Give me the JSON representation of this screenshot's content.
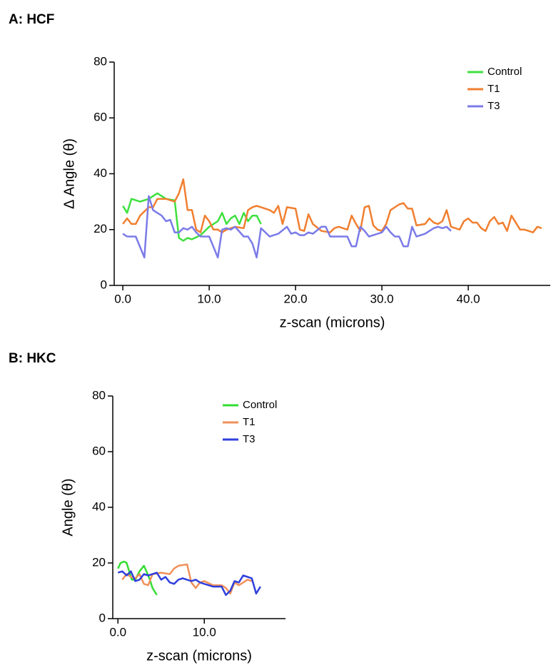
{
  "chart_data": [
    {
      "type": "line",
      "title": "A: HCF",
      "xlabel": "z-scan (microns)",
      "ylabel": "Δ Angle (θ)",
      "xlim": [
        -1,
        49.5
      ],
      "ylim": [
        0,
        80
      ],
      "xticks": [
        {
          "value": 0,
          "label": "0.0"
        },
        {
          "value": 10,
          "label": "10.0"
        },
        {
          "value": 20,
          "label": "20.0"
        },
        {
          "value": 30,
          "label": "30.0"
        },
        {
          "value": 40,
          "label": "40.0"
        }
      ],
      "yticks": [
        0,
        20,
        40,
        60,
        80
      ],
      "legend": "upper right",
      "series": [
        {
          "name": "Control",
          "color": "#3fe03f",
          "x": [
            0,
            0.5,
            1,
            2,
            3,
            4,
            5,
            6,
            6.5,
            7,
            7.5,
            8,
            9,
            10,
            11,
            11.5,
            12,
            12.5,
            13,
            13.5,
            14,
            14.5,
            15,
            15.5,
            16
          ],
          "values": [
            28.5,
            26,
            31,
            30,
            31,
            33,
            31,
            30.5,
            17,
            16,
            17,
            16.5,
            18,
            21,
            23,
            26,
            22,
            24,
            25,
            22,
            26,
            23,
            25,
            25,
            22
          ]
        },
        {
          "name": "T1",
          "color": "#f07f30",
          "x": [
            0,
            0.5,
            1,
            1.5,
            2,
            3,
            3.5,
            4,
            5,
            6,
            6.5,
            7,
            7.5,
            8,
            8.5,
            9,
            9.5,
            10,
            10.5,
            11,
            11.5,
            12,
            13,
            14,
            14.5,
            15,
            15.5,
            16,
            17,
            17.5,
            18,
            18.5,
            19,
            20,
            20.5,
            21,
            21.5,
            22,
            23,
            24,
            24.5,
            25,
            26,
            26.5,
            27,
            27.5,
            28,
            28.5,
            29,
            29.5,
            30,
            30.5,
            31,
            32,
            32.5,
            33,
            33.5,
            34,
            35,
            35.5,
            36,
            36.5,
            37,
            37.5,
            38,
            39,
            39.5,
            40,
            40.5,
            41,
            41.5,
            42,
            42.5,
            43,
            43.5,
            44,
            44.5,
            45,
            46,
            46.5,
            47,
            47.5,
            48,
            48.5
          ],
          "values": [
            22,
            24,
            22,
            22,
            25,
            28,
            28,
            31,
            31,
            30,
            33,
            38,
            27,
            27,
            20,
            19,
            25,
            23,
            20,
            20,
            19,
            20,
            21,
            20.5,
            27,
            28,
            28.5,
            28,
            27,
            26,
            28.5,
            22,
            28,
            27.5,
            20,
            19.5,
            25.5,
            22,
            19.5,
            19,
            20.5,
            21,
            20,
            25,
            22,
            19.5,
            28,
            28.5,
            21.5,
            20,
            19.5,
            22,
            27,
            29,
            29.5,
            27.5,
            27.5,
            21.5,
            22,
            24,
            22.5,
            22,
            23,
            27,
            21,
            20,
            23,
            24,
            22.5,
            22.5,
            20.5,
            19.5,
            23,
            24.5,
            22,
            22.5,
            19.5,
            25,
            20,
            20,
            19.5,
            19,
            21,
            20.5
          ]
        },
        {
          "name": "T3",
          "color": "#7b7be8",
          "x": [
            0,
            0.5,
            1.5,
            2.5,
            3,
            3.5,
            4.5,
            5,
            5.5,
            6,
            6.5,
            7,
            7.5,
            8,
            8.5,
            9,
            10,
            11,
            11.5,
            12,
            12.5,
            13,
            14,
            14.5,
            15,
            15.5,
            16,
            17,
            18,
            19,
            19.5,
            20,
            20.5,
            21,
            21.5,
            22,
            23,
            23.5,
            24,
            25,
            26,
            26.5,
            27,
            27.5,
            28,
            28.5,
            29,
            30,
            30.5,
            31,
            31.5,
            32,
            32.5,
            33,
            33.5,
            34,
            35,
            36,
            36.5,
            37,
            37.5,
            38
          ],
          "values": [
            18.5,
            17.5,
            17.5,
            10,
            32,
            27,
            25,
            23,
            23.5,
            19,
            19,
            20.5,
            20,
            21,
            19,
            17.5,
            17.5,
            10,
            20,
            20.5,
            20,
            21,
            17.5,
            17.5,
            15,
            10,
            20.5,
            17.5,
            18.5,
            21,
            18.5,
            19,
            18,
            18,
            19,
            18.5,
            21,
            21,
            17.5,
            17.5,
            17.5,
            14,
            14,
            21,
            19.5,
            17.5,
            18,
            19,
            21,
            19,
            17.5,
            17.5,
            14,
            14,
            21,
            17.5,
            18.5,
            20.5,
            21,
            20.5,
            21,
            19.5
          ]
        }
      ]
    },
    {
      "type": "line",
      "title": "B: HKC",
      "xlabel": "z-scan (microns)",
      "ylabel": "Angle (θ)",
      "xlim": [
        -0.6,
        19.4
      ],
      "ylim": [
        0,
        80
      ],
      "xticks": [
        {
          "value": 0,
          "label": "0.0"
        },
        {
          "value": 10,
          "label": "10.0"
        }
      ],
      "yticks": [
        0,
        20,
        40,
        60,
        80
      ],
      "legend": "upper center",
      "series": [
        {
          "name": "Control",
          "color": "#33dd33",
          "x": [
            0,
            0.3,
            0.7,
            1,
            1.3,
            1.6,
            2,
            2.5,
            3,
            3.3,
            3.7,
            4,
            4.5
          ],
          "values": [
            18,
            20,
            20.5,
            20,
            17,
            14,
            14,
            17,
            19,
            17,
            14,
            11,
            8.5
          ]
        },
        {
          "name": "T1",
          "color": "#f0905a",
          "x": [
            0.5,
            1,
            1.5,
            2,
            2.5,
            3,
            3.5,
            4,
            5,
            6,
            6.5,
            7,
            8,
            8.5,
            9,
            9.5,
            10,
            11,
            12,
            12.5,
            13,
            13.5,
            14,
            15,
            15.5
          ],
          "values": [
            14,
            16,
            15,
            14.5,
            16,
            12.5,
            12,
            16,
            16.5,
            16,
            18,
            19,
            19.5,
            13,
            11,
            13,
            13.5,
            12,
            12,
            11,
            9,
            13,
            12,
            14,
            13.5
          ]
        },
        {
          "name": "T3",
          "color": "#2f3fdc",
          "x": [
            0,
            0.5,
            1,
            1.5,
            2,
            2.5,
            3,
            3.5,
            4,
            4.5,
            5,
            5.5,
            6,
            6.5,
            7,
            7.5,
            8,
            8.5,
            9,
            9.5,
            10,
            11,
            12,
            12.5,
            13,
            13.5,
            14,
            14.5,
            15,
            15.5,
            16,
            16.5
          ],
          "values": [
            16.5,
            17,
            15.5,
            17,
            13.5,
            14,
            16,
            15.5,
            16,
            16.5,
            14,
            15,
            13,
            12.5,
            14,
            14.5,
            14,
            13.5,
            14,
            13,
            12.5,
            11.5,
            11.5,
            8.5,
            10,
            13.5,
            13,
            15.5,
            15,
            14.5,
            9,
            11.5
          ]
        }
      ]
    }
  ]
}
